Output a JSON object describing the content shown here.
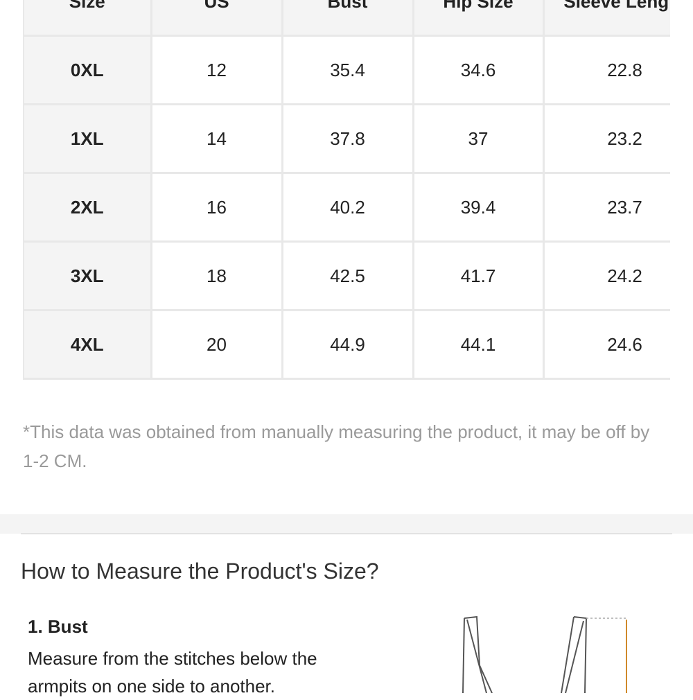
{
  "table": {
    "header": [
      "Size",
      "US",
      "Bust",
      "Hip Size",
      "Sleeve Length"
    ],
    "rows": [
      [
        "0XL",
        12,
        35.4,
        34.6,
        22.8
      ],
      [
        "1XL",
        14,
        37.8,
        37,
        23.2
      ],
      [
        "2XL",
        16,
        40.2,
        39.4,
        23.7
      ],
      [
        "3XL",
        18,
        42.5,
        41.7,
        24.2
      ],
      [
        "4XL",
        20,
        44.9,
        44.1,
        24.6
      ]
    ]
  },
  "note": "*This data was obtained from manually measuring the product, it may be off by 1-2 CM.",
  "section": {
    "title": "How to Measure the Product's Size?",
    "steps": [
      {
        "title": "1. Bust",
        "text": "Measure from the stitches below the armpits on one side to another."
      }
    ]
  }
}
